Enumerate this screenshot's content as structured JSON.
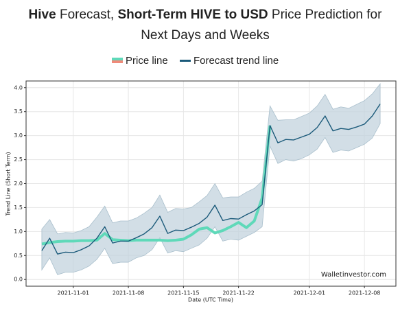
{
  "chart_data": {
    "type": "line",
    "title_lines": [
      [
        {
          "text": "Hive",
          "bold": true
        },
        {
          "text": " Forecast, ",
          "bold": false
        },
        {
          "text": "Short-Term HIVE to USD",
          "bold": true
        },
        {
          "text": " Price Prediction for",
          "bold": false
        }
      ],
      [
        {
          "text": "Next Days and Weeks",
          "bold": false
        }
      ]
    ],
    "xlabel": "Date (UTC Time)",
    "ylabel": "Trend Line (Short Term)",
    "watermark": "Walletinvestor.com",
    "grid": true,
    "x": [
      "2021-10-28",
      "2021-10-29",
      "2021-10-30",
      "2021-10-31",
      "2021-11-01",
      "2021-11-02",
      "2021-11-03",
      "2021-11-04",
      "2021-11-05",
      "2021-11-06",
      "2021-11-07",
      "2021-11-08",
      "2021-11-09",
      "2021-11-10",
      "2021-11-11",
      "2021-11-12",
      "2021-11-13",
      "2021-11-14",
      "2021-11-15",
      "2021-11-16",
      "2021-11-17",
      "2021-11-18",
      "2021-11-19",
      "2021-11-20",
      "2021-11-21",
      "2021-11-22",
      "2021-11-23",
      "2021-11-24",
      "2021-11-25",
      "2021-11-26",
      "2021-11-27",
      "2021-11-28",
      "2021-11-29",
      "2021-11-30",
      "2021-12-01",
      "2021-12-02",
      "2021-12-03",
      "2021-12-04",
      "2021-12-05",
      "2021-12-06",
      "2021-12-07",
      "2021-12-08",
      "2021-12-09",
      "2021-12-10"
    ],
    "series": [
      {
        "name": "Price line",
        "color": "#5fd9b9",
        "values": [
          0.74,
          0.77,
          0.79,
          0.8,
          0.8,
          0.81,
          0.81,
          0.82,
          0.96,
          0.83,
          0.82,
          0.81,
          0.82,
          0.82,
          0.82,
          0.82,
          0.81,
          0.82,
          0.84,
          0.93,
          1.05,
          1.08,
          0.97,
          1.02,
          1.1,
          1.19,
          1.08,
          1.22,
          1.7,
          3.21,
          null,
          null,
          null,
          null,
          null,
          null,
          null,
          null,
          null,
          null,
          null,
          null,
          null,
          null
        ]
      },
      {
        "name": "Forecast trend line",
        "color": "#1b5a7a",
        "values": [
          0.6,
          0.86,
          0.53,
          0.57,
          0.56,
          0.62,
          0.7,
          0.86,
          1.1,
          0.76,
          0.8,
          0.8,
          0.87,
          0.95,
          1.08,
          1.32,
          0.96,
          1.03,
          1.02,
          1.09,
          1.17,
          1.3,
          1.55,
          1.23,
          1.27,
          1.26,
          1.35,
          1.43,
          1.56,
          3.21,
          2.85,
          2.92,
          2.91,
          2.97,
          3.03,
          3.17,
          3.41,
          3.1,
          3.15,
          3.13,
          3.18,
          3.24,
          3.41,
          3.66
        ]
      }
    ],
    "band": {
      "color": "#c3d3dd",
      "upper": [
        1.05,
        1.25,
        0.95,
        0.98,
        0.97,
        1.02,
        1.1,
        1.3,
        1.53,
        1.18,
        1.22,
        1.22,
        1.28,
        1.38,
        1.5,
        1.76,
        1.4,
        1.48,
        1.47,
        1.5,
        1.62,
        1.75,
        2.0,
        1.7,
        1.72,
        1.72,
        1.82,
        1.9,
        2.05,
        3.62,
        3.32,
        3.33,
        3.33,
        3.4,
        3.47,
        3.62,
        3.86,
        3.55,
        3.6,
        3.57,
        3.65,
        3.73,
        3.87,
        4.08
      ],
      "lower": [
        0.2,
        0.45,
        0.1,
        0.15,
        0.15,
        0.2,
        0.28,
        0.42,
        0.65,
        0.33,
        0.36,
        0.36,
        0.45,
        0.5,
        0.62,
        0.87,
        0.55,
        0.6,
        0.58,
        0.65,
        0.72,
        0.86,
        1.1,
        0.8,
        0.84,
        0.82,
        0.9,
        0.98,
        1.1,
        2.78,
        2.42,
        2.5,
        2.47,
        2.52,
        2.6,
        2.72,
        2.96,
        2.65,
        2.7,
        2.68,
        2.75,
        2.82,
        2.95,
        3.25
      ]
    },
    "xlim": [
      "2021-10-26",
      "2021-12-12"
    ],
    "xticks": [
      "2021-11-01",
      "2021-11-08",
      "2021-11-15",
      "2021-11-22",
      "2021-12-01",
      "2021-12-08"
    ],
    "ylim": [
      -0.14,
      4.14
    ],
    "yticks": [
      {
        "value": 0,
        "label": "0.0"
      },
      {
        "value": 0.5,
        "label": "0.5"
      },
      {
        "value": 1,
        "label": "1.0"
      },
      {
        "value": 1.5,
        "label": "1.5"
      },
      {
        "value": 2,
        "label": "2.0"
      },
      {
        "value": 2.5,
        "label": "2.5"
      },
      {
        "value": 3,
        "label": "3.0"
      },
      {
        "value": 3.5,
        "label": "3.5"
      },
      {
        "value": 4,
        "label": "4.0"
      }
    ]
  }
}
